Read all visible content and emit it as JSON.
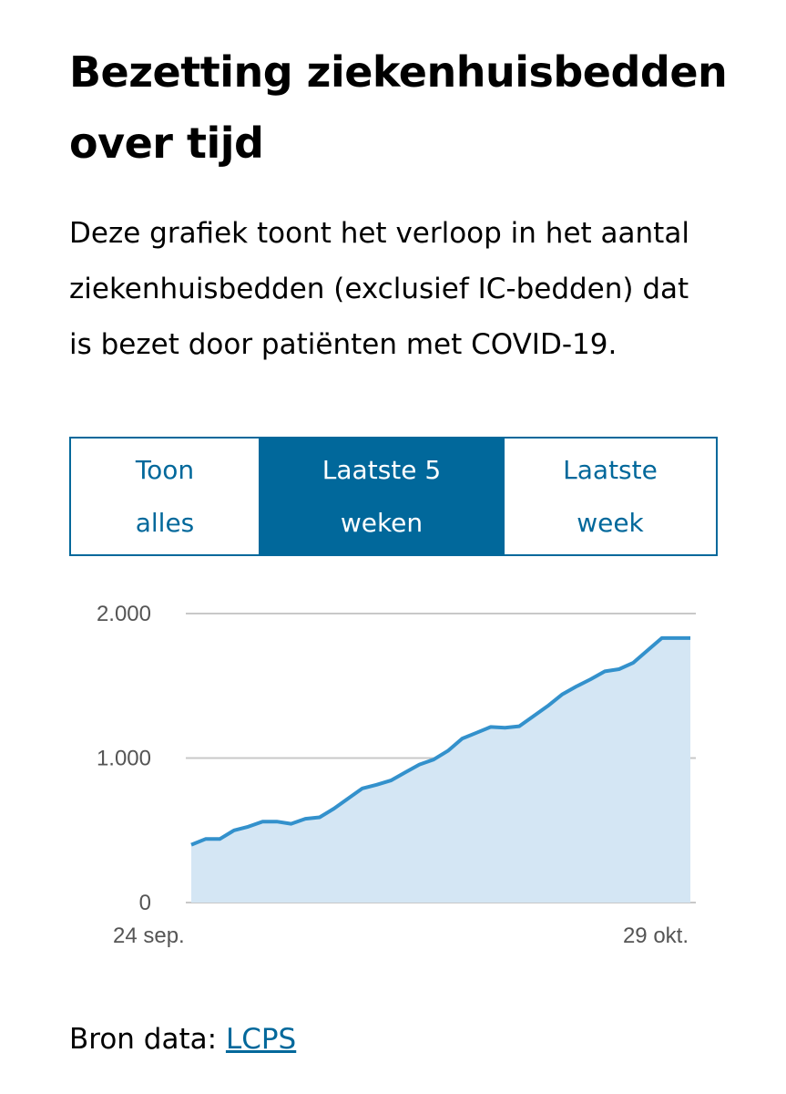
{
  "title_line1": "Bezetting ziekenhuisbedden",
  "title_line2": "over tijd",
  "intro": {
    "line1": "Deze grafiek toont het verloop in het aantal",
    "line2": "ziekenhuisbedden (exclusief IC-bedden) dat",
    "line3": "is bezet door patiënten met COVID-19."
  },
  "tabs": [
    {
      "line1": "Toon",
      "line2": "alles",
      "active": false
    },
    {
      "line1": "Laatste 5",
      "line2": "weken",
      "active": true
    },
    {
      "line1": "Laatste",
      "line2": "week",
      "active": false
    }
  ],
  "colors": {
    "accent": "#01689b",
    "line": "#3391cc",
    "area": "#d4e6f4",
    "grid": "#c8c8c8"
  },
  "chart_data": {
    "type": "area",
    "ylim": [
      0,
      2000
    ],
    "yticks": [
      0,
      1000,
      2000
    ],
    "ytick_labels": [
      "0",
      "1.000",
      "2.000"
    ],
    "x_first_label": "24 sep.",
    "x_last_label": "29 okt.",
    "values": [
      400,
      440,
      440,
      500,
      525,
      560,
      560,
      545,
      580,
      590,
      650,
      720,
      790,
      815,
      845,
      900,
      955,
      990,
      1050,
      1135,
      1175,
      1215,
      1210,
      1220,
      1290,
      1360,
      1440,
      1495,
      1545,
      1600,
      1615,
      1660,
      1745,
      1830,
      1830,
      1830
    ]
  },
  "source": {
    "label": "Bron data:",
    "link": "LCPS"
  }
}
